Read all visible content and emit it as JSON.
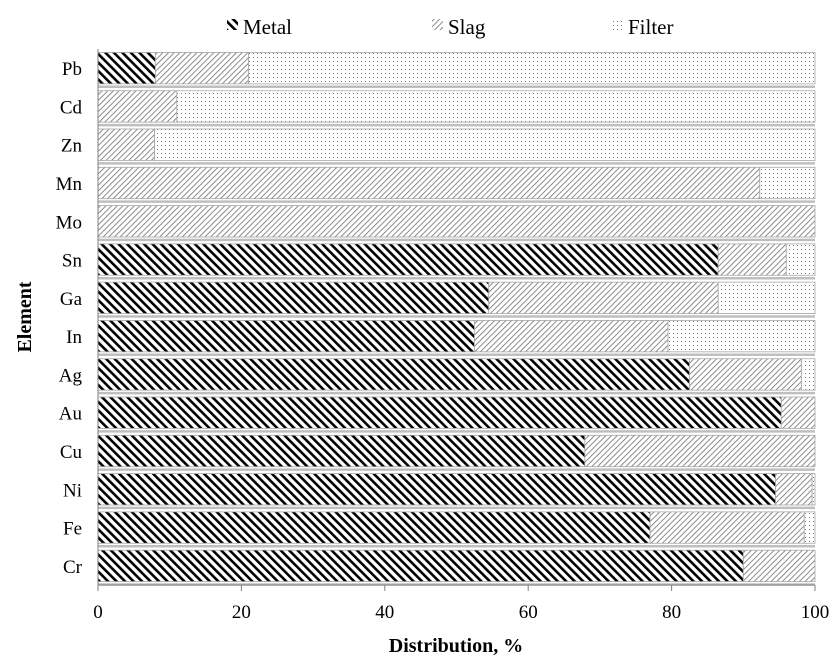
{
  "chart_data": {
    "type": "bar",
    "orientation": "horizontal",
    "stacked": true,
    "title": "",
    "xlabel": "Distribution, %",
    "ylabel": "Element",
    "xlim": [
      0,
      100
    ],
    "xticks": [
      "0",
      "20",
      "40",
      "60",
      "80",
      "100"
    ],
    "grid": false,
    "legend_position": "top",
    "categories": [
      "Pb",
      "Cd",
      "Zn",
      "Mn",
      "Mo",
      "Sn",
      "Ga",
      "In",
      "Ag",
      "Au",
      "Cu",
      "Ni",
      "Fe",
      "Cr"
    ],
    "series": [
      {
        "name": "Metal",
        "pattern": "dense-backslash",
        "values": [
          8,
          0,
          0,
          0,
          0,
          86.5,
          54.5,
          52.5,
          82.5,
          95.3,
          67.9,
          94.5,
          77,
          90
        ]
      },
      {
        "name": "Slag",
        "pattern": "fine-slash",
        "values": [
          13,
          11,
          7.9,
          92.3,
          100,
          9.5,
          32,
          27,
          15.6,
          4.7,
          32.1,
          5.1,
          21.5,
          10
        ]
      },
      {
        "name": "Filter",
        "pattern": "dots",
        "values": [
          79,
          89,
          92.1,
          7.7,
          0,
          4,
          13.5,
          20.5,
          1.9,
          0,
          0,
          0.4,
          1.5,
          0
        ]
      }
    ],
    "colors": {
      "ink": "#000000",
      "bar_border": "#a6a6a6",
      "separator": "#bfbfbf",
      "axis": "#808080"
    }
  }
}
